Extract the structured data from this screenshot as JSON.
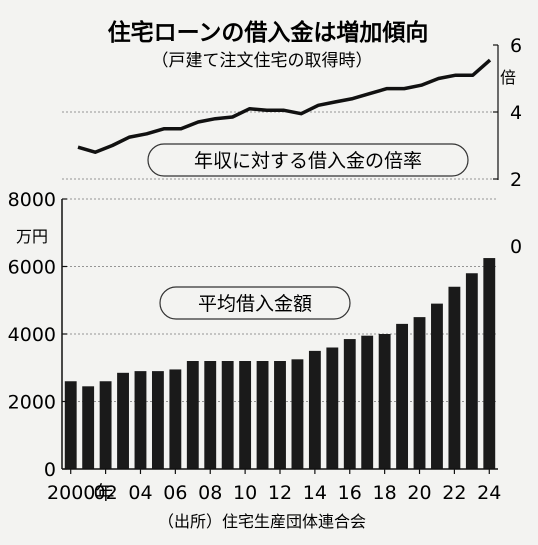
{
  "title": "住宅ローンの借入金は増加傾向",
  "subtitle": "（戸建て注文住宅の取得時）",
  "source": "（出所）住宅生産団体連合会",
  "chart_data": [
    {
      "type": "line",
      "label": "年収に対する借入金の倍率",
      "unit": "倍",
      "x": [
        "2000",
        "2001",
        "2002",
        "2003",
        "2004",
        "2005",
        "2006",
        "2007",
        "2008",
        "2009",
        "2010",
        "2011",
        "2012",
        "2013",
        "2014",
        "2015",
        "2016",
        "2017",
        "2018",
        "2019",
        "2020",
        "2021",
        "2022",
        "2023",
        "2024"
      ],
      "values": [
        2.95,
        2.8,
        3.0,
        3.25,
        3.35,
        3.5,
        3.5,
        3.7,
        3.8,
        3.85,
        4.1,
        4.05,
        4.05,
        3.95,
        4.2,
        4.3,
        4.4,
        4.55,
        4.7,
        4.7,
        4.8,
        5.0,
        5.1,
        5.1,
        5.55
      ],
      "yticks": [
        "0",
        "2",
        "4",
        "6"
      ],
      "ylim": [
        0,
        6
      ],
      "grid": true,
      "axis_side": "right"
    },
    {
      "type": "bar",
      "label": "平均借入金額",
      "unit": "万円",
      "x": [
        "2000",
        "2001",
        "2002",
        "2003",
        "2004",
        "2005",
        "2006",
        "2007",
        "2008",
        "2009",
        "2010",
        "2011",
        "2012",
        "2013",
        "2014",
        "2015",
        "2016",
        "2017",
        "2018",
        "2019",
        "2020",
        "2021",
        "2022",
        "2023",
        "2024"
      ],
      "values": [
        2600,
        2450,
        2600,
        2850,
        2900,
        2900,
        2950,
        3200,
        3200,
        3200,
        3200,
        3200,
        3200,
        3250,
        3500,
        3600,
        3850,
        3950,
        4000,
        4300,
        4500,
        4900,
        5400,
        5800,
        6250
      ],
      "yticks": [
        "0",
        "2000",
        "4000",
        "6000",
        "8000"
      ],
      "ylim": [
        0,
        8000
      ],
      "xticks": [
        "2000年",
        "02",
        "04",
        "06",
        "08",
        "10",
        "12",
        "14",
        "16",
        "18",
        "20",
        "22",
        "24"
      ],
      "axis_side": "left"
    }
  ]
}
